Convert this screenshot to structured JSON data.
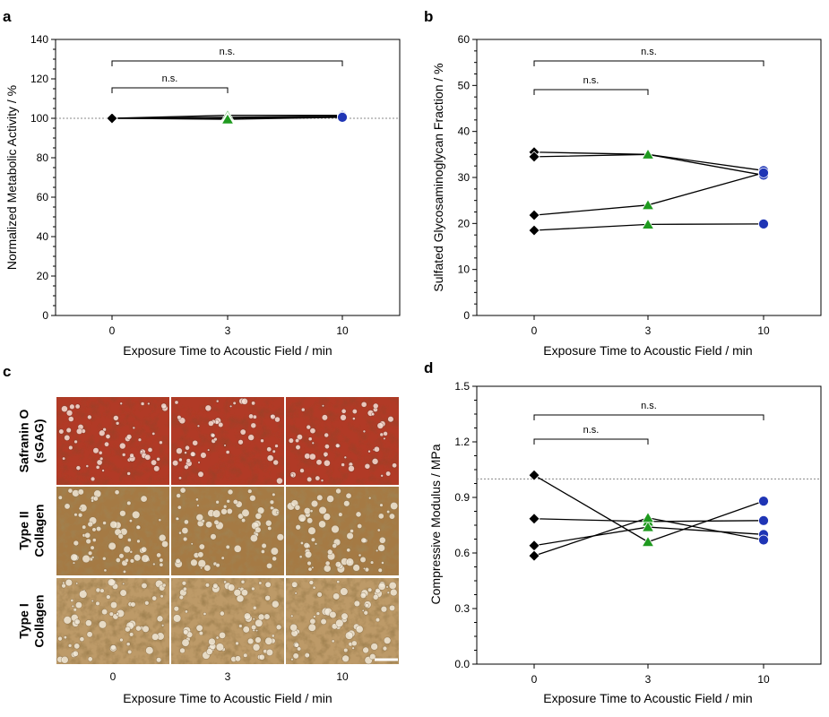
{
  "chart_data": [
    {
      "panel": "a",
      "type": "line",
      "xlabel": "Exposure Time to Acoustic Field / min",
      "ylabel": "Normalized Metabolic Activity / %",
      "x_ticks": [
        "0",
        "3",
        "10"
      ],
      "y_ticks": [
        "0",
        "20",
        "40",
        "60",
        "80",
        "100",
        "120",
        "140"
      ],
      "ylim": [
        0,
        140
      ],
      "reference_line": 100,
      "significance": [
        {
          "from": "0",
          "to": "3",
          "label": "n.s."
        },
        {
          "from": "0",
          "to": "10",
          "label": "n.s."
        }
      ],
      "marker_colors": {
        "0": "#000000",
        "3": "#1f9a1f",
        "10": "#1f35b5"
      },
      "series": [
        {
          "values": [
            100,
            101.5,
            101.5
          ]
        },
        {
          "values": [
            100,
            100.5,
            101
          ]
        },
        {
          "values": [
            100,
            100,
            101
          ]
        },
        {
          "values": [
            100,
            99.5,
            100.5
          ]
        }
      ]
    },
    {
      "panel": "b",
      "type": "line",
      "xlabel": "Exposure Time to Acoustic Field / min",
      "ylabel": "Sulfated Glycosaminoglycan Fraction / %",
      "x_ticks": [
        "0",
        "3",
        "10"
      ],
      "y_ticks": [
        "0",
        "10",
        "20",
        "30",
        "40",
        "50",
        "60"
      ],
      "ylim": [
        0,
        60
      ],
      "significance": [
        {
          "from": "0",
          "to": "3",
          "label": "n.s."
        },
        {
          "from": "0",
          "to": "10",
          "label": "n.s."
        }
      ],
      "marker_colors": {
        "0": "#000000",
        "3": "#1f9a1f",
        "10": "#1f35b5"
      },
      "series": [
        {
          "values": [
            35.5,
            35,
            30.5
          ]
        },
        {
          "values": [
            34.5,
            35,
            31.5
          ]
        },
        {
          "values": [
            21.8,
            24,
            31
          ]
        },
        {
          "values": [
            18.5,
            19.8,
            19.9
          ]
        }
      ]
    },
    {
      "panel": "d",
      "type": "line",
      "xlabel": "Exposure Time to Acoustic Field / min",
      "ylabel": "Compressive Modulus / MPa",
      "x_ticks": [
        "0",
        "3",
        "10"
      ],
      "y_ticks": [
        "0.0",
        "0.3",
        "0.6",
        "0.9",
        "1.2",
        "1.5"
      ],
      "ylim": [
        0,
        1.5
      ],
      "reference_line": 1.0,
      "significance": [
        {
          "from": "0",
          "to": "3",
          "label": "n.s."
        },
        {
          "from": "0",
          "to": "10",
          "label": "n.s."
        }
      ],
      "marker_colors": {
        "0": "#000000",
        "3": "#1f9a1f",
        "10": "#1f35b5"
      },
      "series": [
        {
          "values": [
            1.02,
            0.66,
            0.88
          ]
        },
        {
          "values": [
            0.785,
            0.77,
            0.775
          ]
        },
        {
          "values": [
            0.64,
            0.74,
            0.7
          ]
        },
        {
          "values": [
            0.585,
            0.79,
            0.67
          ]
        }
      ]
    }
  ],
  "panel_c": {
    "letter": "c",
    "row_labels": [
      [
        "Safranin O",
        "(sGAG)"
      ],
      [
        "Type II",
        "Collagen"
      ],
      [
        "Type I",
        "Collagen"
      ]
    ],
    "columns": [
      "0",
      "3",
      "10"
    ],
    "xlabel": "Exposure Time to Acoustic Field / min",
    "stain_colors": [
      "#b13a26",
      "#a57a44",
      "#bd9a68"
    ]
  }
}
